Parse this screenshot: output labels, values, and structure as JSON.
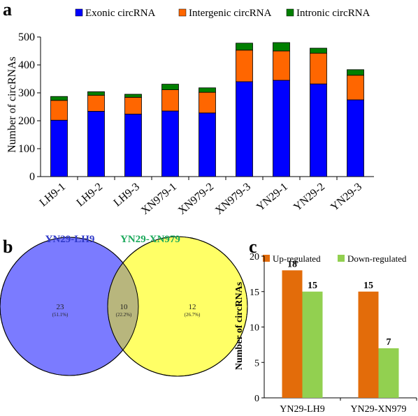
{
  "panel_a": {
    "letter": "a",
    "chart_data": {
      "type": "bar",
      "stacked": true,
      "categories": [
        "LH9-1",
        "LH9-2",
        "LH9-3",
        "XN979-1",
        "XN979-2",
        "XN979-3",
        "YN29-1",
        "YN29-2",
        "YN29-3"
      ],
      "series": [
        {
          "name": "Exonic circRNA",
          "color": "#0000ff",
          "values": [
            202,
            234,
            224,
            235,
            228,
            340,
            345,
            332,
            275
          ]
        },
        {
          "name": "Intergenic circRNA",
          "color": "#ff6600",
          "values": [
            71,
            57,
            60,
            76,
            74,
            113,
            105,
            110,
            88
          ]
        },
        {
          "name": "Intronic circRNA",
          "color": "#007f00",
          "values": [
            14,
            13,
            11,
            20,
            16,
            25,
            30,
            18,
            20
          ]
        }
      ],
      "ylabel": "Number of circRNAs",
      "ylim": [
        0,
        500
      ],
      "yticks": [
        0,
        100,
        200,
        300,
        400,
        500
      ],
      "legend_position": "top"
    }
  },
  "panel_b": {
    "letter": "b",
    "venn": {
      "left_label": "YN29-LH9",
      "right_label": "YN29-XN979",
      "left_color": "#7b7bff",
      "right_color": "#ffff66",
      "overlap_color": "#b8b67d",
      "left_title_color": "#2f39c9",
      "right_title_color": "#1aa85a",
      "left_only": {
        "count": "23",
        "pct": "(51.1%)"
      },
      "both": {
        "count": "10",
        "pct": "(22.2%)"
      },
      "right_only": {
        "count": "12",
        "pct": "(26.7%)"
      }
    }
  },
  "panel_c": {
    "letter": "c",
    "chart_data": {
      "type": "bar",
      "categories": [
        "YN29-LH9",
        "YN29-XN979"
      ],
      "series": [
        {
          "name": "Up-regulated",
          "color": "#e36c0a",
          "values": [
            18,
            15
          ]
        },
        {
          "name": "Down-regulated",
          "color": "#92d050",
          "values": [
            15,
            7
          ]
        }
      ],
      "ylabel": "Number of circRNAs",
      "ylim": [
        0,
        20
      ],
      "yticks": [
        0,
        5,
        10,
        15,
        20
      ],
      "legend_position": "top"
    }
  }
}
